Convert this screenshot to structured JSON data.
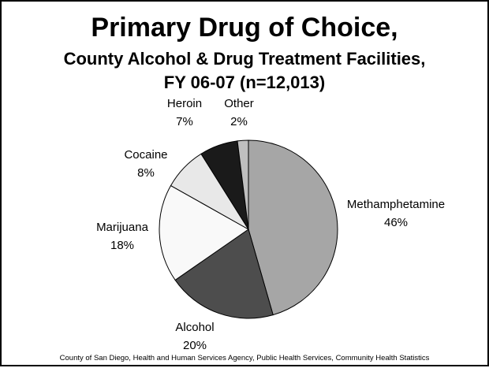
{
  "title": {
    "line1": "Primary Drug of Choice,",
    "line2": "County Alcohol & Drug Treatment Facilities,",
    "line3": "FY 06-07 (n=12,013)"
  },
  "chart_data": {
    "type": "pie",
    "title": "Primary Drug of Choice, County Alcohol & Drug Treatment Facilities, FY 06-07 (n=12,013)",
    "slices": [
      {
        "label": "Methamphetamine",
        "value": 46,
        "display": "46%",
        "color": "#a6a6a6"
      },
      {
        "label": "Alcohol",
        "value": 20,
        "display": "20%",
        "color": "#4d4d4d"
      },
      {
        "label": "Marijuana",
        "value": 18,
        "display": "18%",
        "color": "#f9f9f9"
      },
      {
        "label": "Cocaine",
        "value": 8,
        "display": "8%",
        "color": "#e8e8e8"
      },
      {
        "label": "Heroin",
        "value": 7,
        "display": "7%",
        "color": "#1a1a1a"
      },
      {
        "label": "Other",
        "value": 2,
        "display": "2%",
        "color": "#bfbfbf"
      }
    ]
  },
  "footer": "County of San Diego, Health and Human Services Agency, Public Health Services, Community Health Statistics"
}
